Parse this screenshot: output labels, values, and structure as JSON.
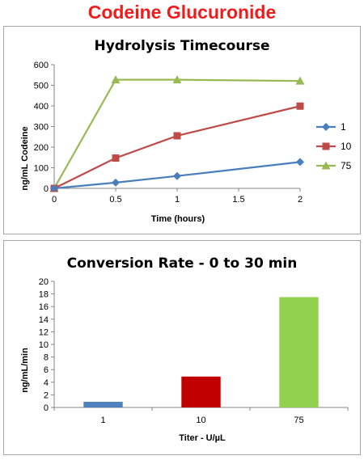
{
  "page_title": "Codeine Glucuronide",
  "chart_data": [
    {
      "type": "line",
      "title": "Hydrolysis Timecourse",
      "xlabel": "Time (hours)",
      "ylabel": "ng/mL Codeine",
      "xlim": [
        0,
        2
      ],
      "ylim": [
        0,
        600
      ],
      "xticks": [
        "0",
        "0.5",
        "1",
        "1.5",
        "2"
      ],
      "yticks": [
        "0",
        "100",
        "200",
        "300",
        "400",
        "500",
        "600"
      ],
      "x": [
        0,
        0.5,
        1,
        2
      ],
      "grid": "none",
      "legend_position": "right",
      "series": [
        {
          "name": "1",
          "values": [
            0,
            28,
            60,
            128
          ],
          "color": "#4a7ebb",
          "marker": "diamond"
        },
        {
          "name": "10",
          "values": [
            0,
            147,
            255,
            399
          ],
          "color": "#be4b48",
          "marker": "square"
        },
        {
          "name": "75",
          "values": [
            0,
            527,
            527,
            521
          ],
          "color": "#98b954",
          "marker": "triangle"
        }
      ]
    },
    {
      "type": "bar",
      "title": "Conversion Rate - 0 to 30 min",
      "xlabel": "Titer - U/µL",
      "ylabel": "ng/mL/min",
      "ylim": [
        0,
        20
      ],
      "yticks": [
        "0",
        "2",
        "4",
        "6",
        "8",
        "10",
        "12",
        "14",
        "16",
        "18",
        "20"
      ],
      "categories": [
        "1",
        "10",
        "75"
      ],
      "values": [
        0.9,
        4.9,
        17.5
      ],
      "colors": [
        "#4f81bd",
        "#c00000",
        "#92d050"
      ],
      "grid": "none"
    }
  ]
}
